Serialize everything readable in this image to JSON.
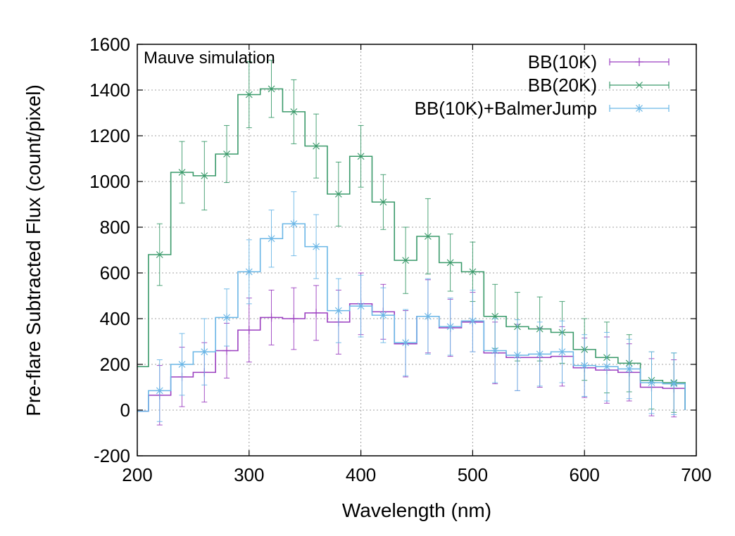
{
  "chart_data": {
    "type": "line",
    "xlabel": "Wavelength (nm)",
    "ylabel": "Pre-flare Subtracted Flux (count/pixel)",
    "annotation": "Mauve simulation",
    "xlim": [
      200,
      700
    ],
    "ylim": [
      -200,
      1600
    ],
    "xticks": [
      200,
      300,
      400,
      500,
      600,
      700
    ],
    "yticks": [
      -200,
      0,
      200,
      400,
      600,
      800,
      1000,
      1200,
      1400,
      1600
    ],
    "grid": true,
    "legend_position": "top-right",
    "x": [
      200,
      220,
      240,
      260,
      280,
      300,
      320,
      340,
      360,
      380,
      400,
      420,
      440,
      460,
      480,
      500,
      520,
      540,
      560,
      580,
      600,
      620,
      640,
      660,
      680
    ],
    "series": [
      {
        "name": "BB(10K)",
        "color": "#9b3fc0",
        "marker": "plus",
        "values": [
          -5,
          65,
          145,
          165,
          260,
          350,
          405,
          400,
          425,
          385,
          465,
          430,
          290,
          410,
          360,
          385,
          250,
          230,
          230,
          235,
          185,
          175,
          165,
          100,
          95
        ],
        "errors": [
          0,
          130,
          130,
          130,
          120,
          140,
          120,
          135,
          120,
          140,
          135,
          120,
          145,
          160,
          125,
          130,
          135,
          145,
          130,
          130,
          130,
          145,
          125,
          125,
          125
        ]
      },
      {
        "name": "BB(20K)",
        "color": "#3a9a6a",
        "marker": "cross",
        "values": [
          190,
          680,
          1040,
          1025,
          1120,
          1380,
          1405,
          1305,
          1155,
          945,
          1110,
          910,
          655,
          760,
          645,
          605,
          410,
          365,
          355,
          340,
          265,
          230,
          205,
          130,
          120
        ],
        "errors": [
          0,
          135,
          135,
          150,
          125,
          145,
          125,
          140,
          140,
          140,
          135,
          120,
          145,
          165,
          125,
          130,
          140,
          150,
          140,
          135,
          135,
          155,
          125,
          125,
          130
        ]
      },
      {
        "name": "BB(10K)+BalmerJump",
        "color": "#6ab6e6",
        "marker": "star",
        "values": [
          -5,
          85,
          200,
          255,
          405,
          605,
          750,
          815,
          715,
          435,
          455,
          415,
          295,
          410,
          365,
          390,
          260,
          240,
          245,
          255,
          195,
          190,
          180,
          120,
          115
        ],
        "errors": [
          0,
          135,
          135,
          145,
          125,
          140,
          125,
          140,
          140,
          140,
          135,
          120,
          145,
          165,
          125,
          135,
          140,
          155,
          140,
          135,
          135,
          150,
          130,
          135,
          135
        ]
      }
    ]
  }
}
